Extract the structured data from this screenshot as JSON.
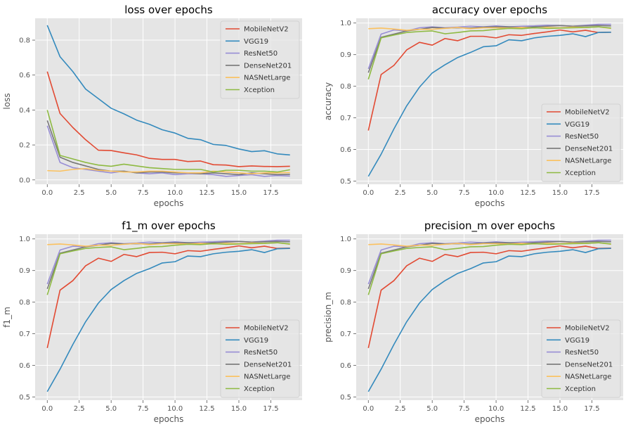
{
  "colors": {
    "MobileNetV2": "#E24A33",
    "VGG19": "#348ABD",
    "ResNet50": "#988ED5",
    "DenseNet201": "#777777",
    "NASNetLarge": "#FBC15E",
    "Xception": "#8EBA42",
    "axes_bg": "#E5E5E5",
    "grid": "#FFFFFF",
    "tick_text": "#555555"
  },
  "chart_data": [
    {
      "type": "line",
      "title": "loss over epochs",
      "xlabel": "epochs",
      "ylabel": "loss",
      "xlim": [
        -0.95,
        19.95
      ],
      "ylim": [
        -0.025,
        0.925
      ],
      "xticks": [
        0,
        2.5,
        5,
        7.5,
        10,
        12.5,
        15,
        17.5
      ],
      "xtick_labels": [
        "0.0",
        "2.5",
        "5.0",
        "7.5",
        "10.0",
        "12.5",
        "15.0",
        "17.5"
      ],
      "yticks": [
        0,
        0.2,
        0.4,
        0.6,
        0.8
      ],
      "ytick_labels": [
        "0.0",
        "0.2",
        "0.4",
        "0.6",
        "0.8"
      ],
      "grid": true,
      "legend_position": "upper-right",
      "x": [
        0,
        1,
        2,
        3,
        4,
        5,
        6,
        7,
        8,
        9,
        10,
        11,
        12,
        13,
        14,
        15,
        16,
        17,
        18,
        19
      ],
      "series": [
        {
          "name": "MobileNetV2",
          "values": [
            0.62,
            0.38,
            0.3,
            0.23,
            0.17,
            0.168,
            0.155,
            0.143,
            0.123,
            0.117,
            0.117,
            0.105,
            0.108,
            0.087,
            0.085,
            0.076,
            0.08,
            0.077,
            0.076,
            0.078
          ]
        },
        {
          "name": "VGG19",
          "values": [
            0.885,
            0.705,
            0.62,
            0.52,
            0.465,
            0.41,
            0.378,
            0.342,
            0.318,
            0.287,
            0.268,
            0.238,
            0.23,
            0.203,
            0.197,
            0.177,
            0.162,
            0.167,
            0.149,
            0.143
          ]
        },
        {
          "name": "ResNet50",
          "values": [
            0.31,
            0.1,
            0.07,
            0.06,
            0.05,
            0.04,
            0.05,
            0.04,
            0.035,
            0.04,
            0.03,
            0.035,
            0.035,
            0.03,
            0.02,
            0.025,
            0.03,
            0.02,
            0.025,
            0.022
          ]
        },
        {
          "name": "DenseNet201",
          "values": [
            0.34,
            0.13,
            0.1,
            0.08,
            0.06,
            0.05,
            0.05,
            0.04,
            0.045,
            0.045,
            0.04,
            0.04,
            0.035,
            0.04,
            0.035,
            0.03,
            0.04,
            0.035,
            0.03,
            0.032
          ]
        },
        {
          "name": "NASNetLarge",
          "values": [
            0.053,
            0.05,
            0.06,
            0.065,
            0.055,
            0.05,
            0.045,
            0.045,
            0.05,
            0.05,
            0.045,
            0.04,
            0.04,
            0.05,
            0.045,
            0.04,
            0.035,
            0.04,
            0.04,
            0.042
          ]
        },
        {
          "name": "Xception",
          "values": [
            0.4,
            0.14,
            0.12,
            0.1,
            0.085,
            0.078,
            0.09,
            0.08,
            0.07,
            0.065,
            0.06,
            0.06,
            0.06,
            0.045,
            0.055,
            0.055,
            0.05,
            0.05,
            0.045,
            0.058
          ]
        }
      ]
    },
    {
      "type": "line",
      "title": "accuracy over epochs",
      "xlabel": "epochs",
      "ylabel": "accuracy",
      "xlim": [
        -0.95,
        19.95
      ],
      "ylim": [
        0.49,
        1.015
      ],
      "xticks": [
        0,
        2.5,
        5,
        7.5,
        10,
        12.5,
        15,
        17.5
      ],
      "xtick_labels": [
        "0.0",
        "2.5",
        "5.0",
        "7.5",
        "10.0",
        "12.5",
        "15.0",
        "17.5"
      ],
      "yticks": [
        0.5,
        0.6,
        0.7,
        0.8,
        0.9,
        1.0
      ],
      "ytick_labels": [
        "0.5",
        "0.6",
        "0.7",
        "0.8",
        "0.9",
        "1.0"
      ],
      "grid": true,
      "legend_position": "lower-right",
      "x": [
        0,
        1,
        2,
        3,
        4,
        5,
        6,
        7,
        8,
        9,
        10,
        11,
        12,
        13,
        14,
        15,
        16,
        17,
        18,
        19
      ],
      "series": [
        {
          "name": "MobileNetV2",
          "values": [
            0.66,
            0.837,
            0.866,
            0.915,
            0.939,
            0.93,
            0.951,
            0.944,
            0.958,
            0.958,
            0.953,
            0.963,
            0.961,
            0.967,
            0.972,
            0.978,
            0.972,
            0.977,
            0.97,
            0.971
          ]
        },
        {
          "name": "VGG19",
          "values": [
            0.515,
            0.585,
            0.665,
            0.738,
            0.797,
            0.842,
            0.868,
            0.891,
            0.907,
            0.925,
            0.928,
            0.947,
            0.944,
            0.953,
            0.958,
            0.961,
            0.966,
            0.957,
            0.97,
            0.971
          ]
        },
        {
          "name": "ResNet50",
          "values": [
            0.855,
            0.965,
            0.978,
            0.975,
            0.985,
            0.988,
            0.985,
            0.987,
            0.99,
            0.988,
            0.991,
            0.988,
            0.99,
            0.991,
            0.993,
            0.992,
            0.99,
            0.993,
            0.996,
            0.996
          ]
        },
        {
          "name": "DenseNet201",
          "values": [
            0.843,
            0.955,
            0.965,
            0.975,
            0.98,
            0.986,
            0.984,
            0.985,
            0.984,
            0.987,
            0.988,
            0.988,
            0.986,
            0.988,
            0.99,
            0.992,
            0.99,
            0.991,
            0.992,
            0.991
          ]
        },
        {
          "name": "NASNetLarge",
          "values": [
            0.982,
            0.984,
            0.981,
            0.977,
            0.98,
            0.98,
            0.983,
            0.986,
            0.982,
            0.985,
            0.985,
            0.984,
            0.986,
            0.984,
            0.986,
            0.985,
            0.987,
            0.986,
            0.988,
            0.983
          ]
        },
        {
          "name": "Xception",
          "values": [
            0.822,
            0.953,
            0.962,
            0.97,
            0.973,
            0.975,
            0.966,
            0.97,
            0.975,
            0.976,
            0.98,
            0.983,
            0.982,
            0.985,
            0.983,
            0.984,
            0.985,
            0.986,
            0.988,
            0.984
          ]
        }
      ]
    },
    {
      "type": "line",
      "title": "f1_m over epochs",
      "xlabel": "epochs",
      "ylabel": "f1_m",
      "xlim": [
        -0.95,
        19.95
      ],
      "ylim": [
        0.49,
        1.015
      ],
      "xticks": [
        0,
        2.5,
        5,
        7.5,
        10,
        12.5,
        15,
        17.5
      ],
      "xtick_labels": [
        "0.0",
        "2.5",
        "5.0",
        "7.5",
        "10.0",
        "12.5",
        "15.0",
        "17.5"
      ],
      "yticks": [
        0.5,
        0.6,
        0.7,
        0.8,
        0.9,
        1.0
      ],
      "ytick_labels": [
        "0.5",
        "0.6",
        "0.7",
        "0.8",
        "0.9",
        "1.0"
      ],
      "grid": true,
      "legend_position": "lower-right",
      "x": [
        0,
        1,
        2,
        3,
        4,
        5,
        6,
        7,
        8,
        9,
        10,
        11,
        12,
        13,
        14,
        15,
        16,
        17,
        18,
        19
      ],
      "series": [
        {
          "name": "MobileNetV2",
          "values": [
            0.655,
            0.838,
            0.868,
            0.915,
            0.939,
            0.929,
            0.951,
            0.944,
            0.957,
            0.958,
            0.953,
            0.963,
            0.961,
            0.967,
            0.972,
            0.978,
            0.972,
            0.977,
            0.97,
            0.971
          ]
        },
        {
          "name": "VGG19",
          "values": [
            0.517,
            0.588,
            0.666,
            0.738,
            0.797,
            0.84,
            0.868,
            0.891,
            0.906,
            0.924,
            0.928,
            0.946,
            0.944,
            0.953,
            0.958,
            0.961,
            0.966,
            0.957,
            0.969,
            0.97
          ]
        },
        {
          "name": "ResNet50",
          "values": [
            0.857,
            0.965,
            0.977,
            0.975,
            0.985,
            0.988,
            0.985,
            0.987,
            0.99,
            0.988,
            0.991,
            0.988,
            0.99,
            0.991,
            0.993,
            0.992,
            0.99,
            0.993,
            0.996,
            0.996
          ]
        },
        {
          "name": "DenseNet201",
          "values": [
            0.842,
            0.955,
            0.965,
            0.975,
            0.98,
            0.986,
            0.984,
            0.985,
            0.984,
            0.987,
            0.988,
            0.988,
            0.986,
            0.988,
            0.99,
            0.992,
            0.99,
            0.991,
            0.992,
            0.991
          ]
        },
        {
          "name": "NASNetLarge",
          "values": [
            0.982,
            0.984,
            0.981,
            0.977,
            0.98,
            0.98,
            0.983,
            0.986,
            0.982,
            0.985,
            0.985,
            0.984,
            0.986,
            0.984,
            0.986,
            0.985,
            0.987,
            0.986,
            0.988,
            0.983
          ]
        },
        {
          "name": "Xception",
          "values": [
            0.823,
            0.953,
            0.962,
            0.97,
            0.973,
            0.975,
            0.966,
            0.97,
            0.975,
            0.976,
            0.98,
            0.983,
            0.982,
            0.985,
            0.983,
            0.984,
            0.985,
            0.986,
            0.988,
            0.984
          ]
        }
      ]
    },
    {
      "type": "line",
      "title": "precision_m over epochs",
      "xlabel": "epochs",
      "ylabel": "precision_m",
      "xlim": [
        -0.95,
        19.95
      ],
      "ylim": [
        0.49,
        1.015
      ],
      "xticks": [
        0,
        2.5,
        5,
        7.5,
        10,
        12.5,
        15,
        17.5
      ],
      "xtick_labels": [
        "0.0",
        "2.5",
        "5.0",
        "7.5",
        "10.0",
        "12.5",
        "15.0",
        "17.5"
      ],
      "yticks": [
        0.5,
        0.6,
        0.7,
        0.8,
        0.9,
        1.0
      ],
      "ytick_labels": [
        "0.5",
        "0.6",
        "0.7",
        "0.8",
        "0.9",
        "1.0"
      ],
      "grid": true,
      "legend_position": "lower-right",
      "x": [
        0,
        1,
        2,
        3,
        4,
        5,
        6,
        7,
        8,
        9,
        10,
        11,
        12,
        13,
        14,
        15,
        16,
        17,
        18,
        19
      ],
      "series": [
        {
          "name": "MobileNetV2",
          "values": [
            0.655,
            0.838,
            0.868,
            0.915,
            0.939,
            0.929,
            0.951,
            0.944,
            0.957,
            0.958,
            0.953,
            0.963,
            0.961,
            0.967,
            0.972,
            0.978,
            0.972,
            0.977,
            0.97,
            0.971
          ]
        },
        {
          "name": "VGG19",
          "values": [
            0.517,
            0.588,
            0.666,
            0.738,
            0.797,
            0.84,
            0.868,
            0.891,
            0.906,
            0.924,
            0.928,
            0.946,
            0.944,
            0.953,
            0.958,
            0.961,
            0.966,
            0.957,
            0.969,
            0.97
          ]
        },
        {
          "name": "ResNet50",
          "values": [
            0.857,
            0.965,
            0.977,
            0.975,
            0.985,
            0.988,
            0.985,
            0.987,
            0.99,
            0.988,
            0.991,
            0.988,
            0.99,
            0.991,
            0.993,
            0.992,
            0.99,
            0.993,
            0.996,
            0.996
          ]
        },
        {
          "name": "DenseNet201",
          "values": [
            0.842,
            0.955,
            0.965,
            0.975,
            0.98,
            0.986,
            0.984,
            0.985,
            0.984,
            0.987,
            0.988,
            0.988,
            0.986,
            0.988,
            0.99,
            0.992,
            0.99,
            0.991,
            0.992,
            0.991
          ]
        },
        {
          "name": "NASNetLarge",
          "values": [
            0.982,
            0.984,
            0.981,
            0.977,
            0.98,
            0.98,
            0.983,
            0.986,
            0.982,
            0.985,
            0.985,
            0.984,
            0.986,
            0.984,
            0.986,
            0.985,
            0.987,
            0.986,
            0.988,
            0.983
          ]
        },
        {
          "name": "Xception",
          "values": [
            0.823,
            0.953,
            0.962,
            0.97,
            0.973,
            0.975,
            0.966,
            0.97,
            0.975,
            0.976,
            0.98,
            0.983,
            0.982,
            0.985,
            0.983,
            0.984,
            0.985,
            0.986,
            0.988,
            0.984
          ]
        }
      ]
    }
  ]
}
